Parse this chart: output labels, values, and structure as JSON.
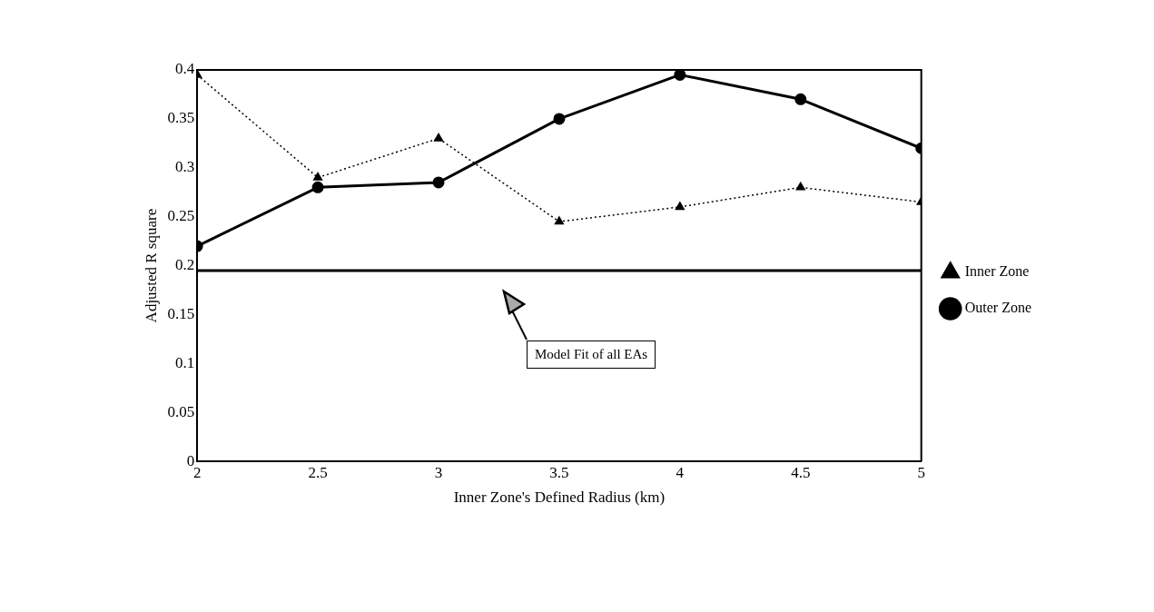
{
  "chart_data": {
    "type": "line",
    "xlabel": "Inner Zone's Defined Radius (km)",
    "ylabel": "Adjusted R square",
    "x": [
      2,
      2.5,
      3,
      3.5,
      4,
      4.5,
      5
    ],
    "xlim": [
      2,
      5
    ],
    "xticks": [
      2,
      2.5,
      3,
      3.5,
      4,
      4.5,
      5
    ],
    "ylim": [
      0,
      0.4
    ],
    "yticks": [
      0,
      0.05,
      0.1,
      0.15,
      0.2,
      0.25,
      0.3,
      0.35,
      0.4
    ],
    "grid": false,
    "legend": "right",
    "series": [
      {
        "name": "Inner Zone",
        "color": "#000000",
        "marker": "triangle",
        "line_style": "dotted",
        "values": [
          0.395,
          0.29,
          0.33,
          0.245,
          0.26,
          0.28,
          0.265
        ]
      },
      {
        "name": "Outer Zone",
        "color": "#000000",
        "marker": "circle",
        "line_style": "solid",
        "values": [
          0.22,
          0.28,
          0.285,
          0.35,
          0.395,
          0.37,
          0.32
        ]
      }
    ],
    "ref_lines": [
      {
        "axis": "y",
        "value": 0.195,
        "color": "#000000"
      }
    ],
    "annotations": [
      "Model Fit of all EAs"
    ]
  }
}
